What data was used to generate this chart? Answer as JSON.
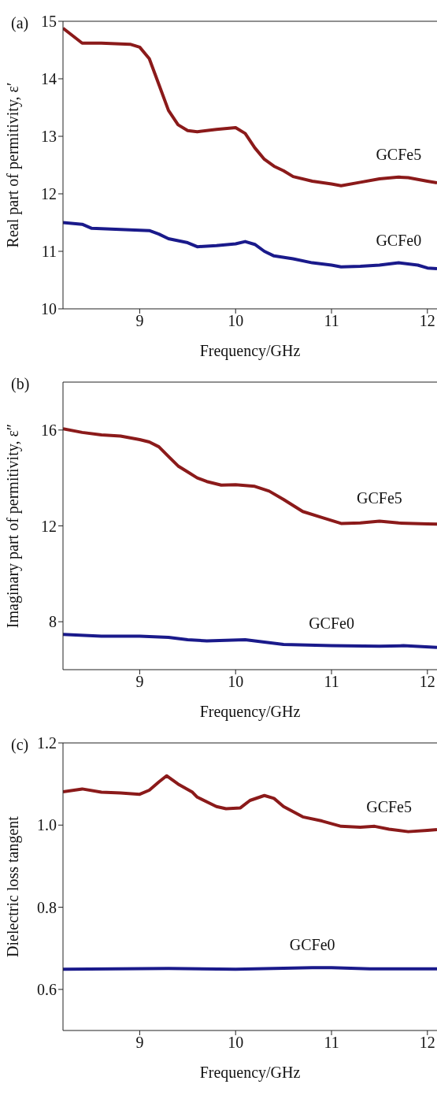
{
  "chart_data": [
    {
      "type": "line",
      "xlabel": "Frequency/GHz",
      "ylabel": "Real part of permitivity, ε′",
      "annotations": [
        "(a)"
      ],
      "xlim": [
        8.2,
        12.1
      ],
      "xticks": [
        9,
        10,
        11,
        12
      ],
      "ylim": [
        10,
        15
      ],
      "yticks": [
        10,
        11,
        12,
        13,
        14,
        15
      ],
      "grid": false,
      "legend": false,
      "series": [
        {
          "name": "GCFe5",
          "color": "#8b1a1a",
          "x": [
            8.2,
            8.4,
            8.6,
            8.9,
            9.0,
            9.1,
            9.2,
            9.3,
            9.4,
            9.5,
            9.6,
            9.8,
            10.0,
            10.1,
            10.2,
            10.3,
            10.4,
            10.5,
            10.6,
            10.8,
            11.0,
            11.1,
            11.3,
            11.5,
            11.7,
            11.8,
            12.0,
            12.1
          ],
          "values": [
            14.88,
            14.62,
            14.62,
            14.6,
            14.55,
            14.35,
            13.9,
            13.45,
            13.2,
            13.1,
            13.08,
            13.12,
            13.15,
            13.05,
            12.8,
            12.6,
            12.48,
            12.4,
            12.3,
            12.22,
            12.17,
            12.14,
            12.2,
            12.26,
            12.29,
            12.28,
            12.22,
            12.19
          ]
        },
        {
          "name": "GCFe0",
          "color": "#1a1a8b",
          "x": [
            8.2,
            8.4,
            8.5,
            8.8,
            9.1,
            9.2,
            9.3,
            9.5,
            9.6,
            9.8,
            10.0,
            10.1,
            10.2,
            10.3,
            10.4,
            10.6,
            10.8,
            11.0,
            11.1,
            11.3,
            11.5,
            11.7,
            11.9,
            12.0,
            12.1
          ],
          "values": [
            11.5,
            11.47,
            11.4,
            11.38,
            11.36,
            11.3,
            11.22,
            11.15,
            11.08,
            11.1,
            11.13,
            11.17,
            11.12,
            11.0,
            10.92,
            10.87,
            10.8,
            10.76,
            10.73,
            10.74,
            10.76,
            10.8,
            10.76,
            10.71,
            10.7
          ]
        }
      ]
    },
    {
      "type": "line",
      "xlabel": "Frequency/GHz",
      "ylabel": "Imaginary part of permitivity, ε″",
      "annotations": [
        "(b)"
      ],
      "xlim": [
        8.2,
        12.1
      ],
      "xticks": [
        9,
        10,
        11,
        12
      ],
      "ylim": [
        6,
        18
      ],
      "yticks": [
        8,
        12,
        16
      ],
      "grid": false,
      "legend": false,
      "series": [
        {
          "name": "GCFe5",
          "color": "#8b1a1a",
          "x": [
            8.2,
            8.4,
            8.6,
            8.8,
            9.0,
            9.1,
            9.2,
            9.3,
            9.4,
            9.5,
            9.6,
            9.7,
            9.85,
            10.0,
            10.2,
            10.35,
            10.5,
            10.7,
            10.9,
            11.1,
            11.3,
            11.5,
            11.7,
            12.0,
            12.1
          ],
          "values": [
            16.05,
            15.9,
            15.8,
            15.75,
            15.6,
            15.5,
            15.3,
            14.9,
            14.5,
            14.25,
            14.0,
            13.85,
            13.7,
            13.72,
            13.65,
            13.45,
            13.1,
            12.6,
            12.35,
            12.1,
            12.12,
            12.2,
            12.12,
            12.08,
            12.07
          ]
        },
        {
          "name": "GCFe0",
          "color": "#1a1a8b",
          "x": [
            8.2,
            8.6,
            9.0,
            9.3,
            9.5,
            9.7,
            10.1,
            10.3,
            10.5,
            11.0,
            11.5,
            11.75,
            12.1
          ],
          "values": [
            7.47,
            7.4,
            7.4,
            7.35,
            7.25,
            7.2,
            7.25,
            7.15,
            7.05,
            7.0,
            6.98,
            7.0,
            6.93
          ]
        }
      ]
    },
    {
      "type": "line",
      "xlabel": "Frequency/GHz",
      "ylabel": "Dielectric loss tangent",
      "annotations": [
        "(c)"
      ],
      "xlim": [
        8.2,
        12.1
      ],
      "xticks": [
        9,
        10,
        11,
        12
      ],
      "ylim": [
        0.5,
        1.2
      ],
      "yticks": [
        {
          "value": 0.6,
          "label": "0.6"
        },
        {
          "value": 0.8,
          "label": "0.8"
        },
        {
          "value": 1.0,
          "label": "1.0"
        },
        {
          "value": 1.2,
          "label": "1.2"
        }
      ],
      "grid": false,
      "legend": false,
      "series": [
        {
          "name": "GCFe5",
          "color": "#8b1a1a",
          "x": [
            8.2,
            8.4,
            8.6,
            8.8,
            9.0,
            9.1,
            9.2,
            9.28,
            9.4,
            9.55,
            9.6,
            9.8,
            9.9,
            10.05,
            10.15,
            10.3,
            10.4,
            10.5,
            10.7,
            10.9,
            11.1,
            11.3,
            11.45,
            11.6,
            11.8,
            12.0,
            12.1
          ],
          "values": [
            1.081,
            1.088,
            1.08,
            1.078,
            1.075,
            1.085,
            1.105,
            1.12,
            1.1,
            1.08,
            1.068,
            1.045,
            1.04,
            1.042,
            1.06,
            1.072,
            1.065,
            1.045,
            1.02,
            1.01,
            0.997,
            0.995,
            0.997,
            0.99,
            0.984,
            0.987,
            0.989
          ]
        },
        {
          "name": "GCFe0",
          "color": "#1a1a8b",
          "x": [
            8.2,
            9.3,
            10.0,
            10.8,
            11.0,
            11.4,
            12.1
          ],
          "values": [
            0.649,
            0.651,
            0.649,
            0.653,
            0.653,
            0.65,
            0.65
          ]
        }
      ]
    }
  ]
}
